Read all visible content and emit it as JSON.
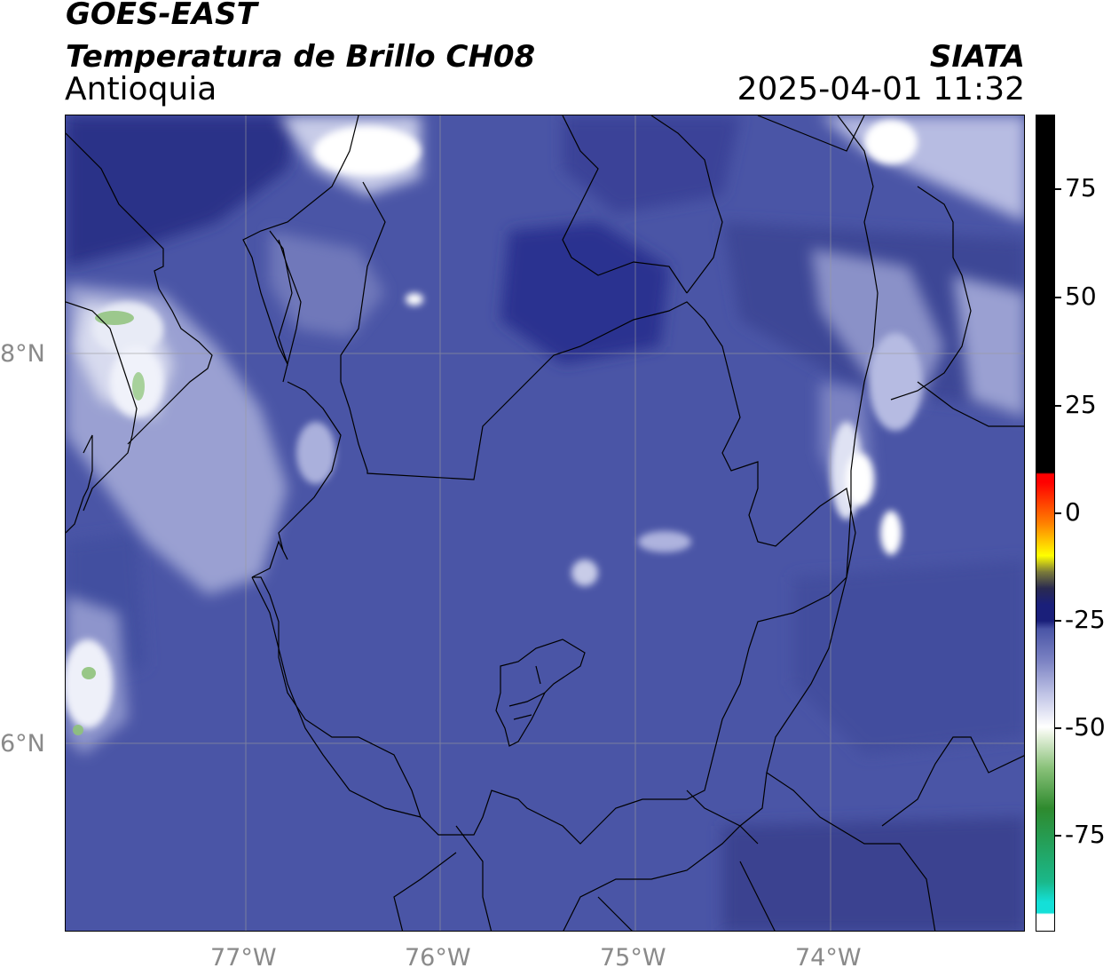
{
  "header": {
    "satellite": "GOES-EAST",
    "product": "Temperatura de Brillo CH08",
    "region": "Antioquia",
    "brand": "SIATA",
    "timestamp": "2025-04-01 11:32"
  },
  "map": {
    "lat_labels": [
      "8°N",
      "6°N"
    ],
    "lon_labels": [
      "77°W",
      "76°W",
      "75°W",
      "74°W"
    ],
    "background_color": "#4a55a6",
    "gridline_color": "#9a9a9a"
  },
  "colorbar": {
    "tick_labels": [
      "75",
      "50",
      "25",
      "0",
      "-25",
      "-50",
      "-75"
    ],
    "colors": [
      "#ffffff",
      "#14e0d8",
      "#1ab88a",
      "#2e8a2e",
      "#8ac27a",
      "#ffffff",
      "#a6acd6",
      "#4a55a6",
      "#1a1f7a",
      "#2a2a50",
      "#7a7a3a",
      "#ffff00",
      "#ff8000",
      "#ff0000",
      "#000000"
    ]
  }
}
